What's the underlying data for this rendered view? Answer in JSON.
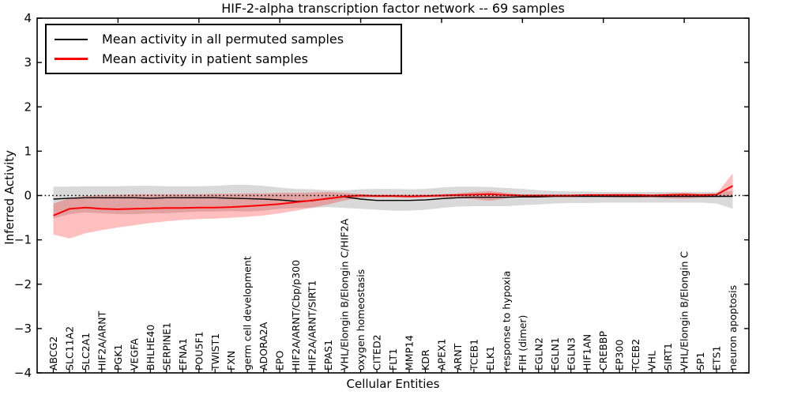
{
  "chart_data": {
    "type": "line",
    "title": "HIF-2-alpha transcription factor network -- 69 samples",
    "xlabel": "Cellular Entities",
    "ylabel": "Inferred Activity",
    "ylim": [
      -4,
      4
    ],
    "xlim": [
      0,
      44
    ],
    "grid": false,
    "legend_position": "upper left",
    "yticks": [
      4,
      3,
      2,
      1,
      0,
      -1,
      -2,
      -3,
      -4
    ],
    "ytick_labels": [
      "4",
      "3",
      "2",
      "1",
      "0",
      "−1",
      "−2",
      "−3",
      "−4"
    ],
    "top_axis_tick_positions": [
      5,
      10,
      15,
      20,
      25,
      30,
      35,
      40
    ],
    "zero_reference_line": {
      "y": 0,
      "style": "dotted",
      "color": "#000000"
    },
    "categories": [
      "ABCG2",
      "SLC11A2",
      "SLC2A1",
      "HIF2A/ARNT",
      "PGK1",
      "VEGFA",
      "BHLHE40",
      "SERPINE1",
      "EFNA1",
      "POU5F1",
      "TWIST1",
      "FXN",
      "germ cell development",
      "ADORA2A",
      "EPO",
      "HIF2A/ARNT/Cbp/p300",
      "HIF2A/ARNT/SIRT1",
      "EPAS1",
      "VHL/Elongin B/Elongin C/HIF2A",
      "oxygen homeostasis",
      "CITED2",
      "FLT1",
      "MMP14",
      "KDR",
      "APEX1",
      "ARNT",
      "TCEB1",
      "ELK1",
      "response to hypoxia",
      "FIH (dimer)",
      "EGLN2",
      "EGLN1",
      "EGLN3",
      "HIF1AN",
      "CREBBP",
      "EP300",
      "TCEB2",
      "VHL",
      "SIRT1",
      "VHL/Elongin B/Elongin C",
      "SP1",
      "ETS1",
      "neuron apoptosis"
    ],
    "series": [
      {
        "name": "Mean activity in all permuted samples",
        "color": "#000000",
        "line_width": 1.4,
        "values": [
          -0.08,
          -0.06,
          -0.05,
          -0.05,
          -0.05,
          -0.05,
          -0.06,
          -0.05,
          -0.05,
          -0.05,
          -0.05,
          -0.06,
          -0.07,
          -0.08,
          -0.1,
          -0.13,
          -0.12,
          -0.06,
          -0.03,
          -0.08,
          -0.11,
          -0.11,
          -0.11,
          -0.1,
          -0.07,
          -0.05,
          -0.04,
          -0.04,
          -0.04,
          -0.03,
          -0.03,
          -0.02,
          -0.02,
          -0.02,
          -0.02,
          -0.02,
          -0.02,
          -0.02,
          -0.02,
          -0.02,
          -0.02,
          -0.02,
          -0.02
        ],
        "band": {
          "color": "#808080",
          "opacity": 0.3,
          "upper": [
            0.2,
            0.2,
            0.21,
            0.21,
            0.21,
            0.22,
            0.22,
            0.21,
            0.21,
            0.21,
            0.22,
            0.24,
            0.24,
            0.22,
            0.18,
            0.15,
            0.14,
            0.12,
            0.12,
            0.14,
            0.15,
            0.15,
            0.14,
            0.15,
            0.18,
            0.2,
            0.2,
            0.19,
            0.17,
            0.15,
            0.12,
            0.1,
            0.09,
            0.09,
            0.08,
            0.08,
            0.08,
            0.08,
            0.08,
            0.08,
            0.08,
            0.08,
            0.1
          ],
          "lower": [
            -0.52,
            -0.42,
            -0.38,
            -0.4,
            -0.42,
            -0.42,
            -0.4,
            -0.4,
            -0.38,
            -0.36,
            -0.36,
            -0.35,
            -0.36,
            -0.34,
            -0.3,
            -0.28,
            -0.28,
            -0.26,
            -0.28,
            -0.3,
            -0.32,
            -0.34,
            -0.34,
            -0.32,
            -0.28,
            -0.25,
            -0.24,
            -0.24,
            -0.24,
            -0.22,
            -0.2,
            -0.18,
            -0.17,
            -0.17,
            -0.16,
            -0.16,
            -0.16,
            -0.16,
            -0.16,
            -0.16,
            -0.16,
            -0.18,
            -0.3
          ]
        }
      },
      {
        "name": "Mean activity in patient samples",
        "color": "#ff0000",
        "line_width": 2,
        "values": [
          -0.45,
          -0.3,
          -0.27,
          -0.3,
          -0.31,
          -0.3,
          -0.29,
          -0.28,
          -0.28,
          -0.27,
          -0.27,
          -0.26,
          -0.24,
          -0.22,
          -0.19,
          -0.15,
          -0.11,
          -0.07,
          -0.02,
          0.0,
          -0.01,
          -0.01,
          -0.02,
          -0.01,
          0.0,
          0.01,
          0.02,
          0.03,
          0.01,
          0.0,
          0.0,
          0.0,
          0.0,
          0.01,
          0.01,
          0.01,
          0.01,
          0.0,
          0.01,
          0.02,
          0.01,
          0.02,
          0.22
        ],
        "band": {
          "color": "#ff0000",
          "opacity": 0.25,
          "upper": [
            -0.18,
            -0.06,
            -0.01,
            0.01,
            0.02,
            0.03,
            0.03,
            0.03,
            0.03,
            0.03,
            0.04,
            0.04,
            0.05,
            0.05,
            0.06,
            0.06,
            0.07,
            0.08,
            0.06,
            0.03,
            0.02,
            0.02,
            0.02,
            0.02,
            0.03,
            0.05,
            0.08,
            0.1,
            0.06,
            0.02,
            0.02,
            0.02,
            0.02,
            0.02,
            0.03,
            0.04,
            0.04,
            0.03,
            0.05,
            0.06,
            0.04,
            0.04,
            0.5
          ],
          "lower": [
            -0.88,
            -0.97,
            -0.85,
            -0.78,
            -0.72,
            -0.67,
            -0.62,
            -0.58,
            -0.55,
            -0.53,
            -0.52,
            -0.5,
            -0.48,
            -0.45,
            -0.4,
            -0.34,
            -0.27,
            -0.2,
            -0.11,
            -0.05,
            -0.04,
            -0.04,
            -0.05,
            -0.04,
            -0.04,
            -0.05,
            -0.08,
            -0.12,
            -0.06,
            -0.03,
            -0.03,
            -0.03,
            -0.03,
            -0.03,
            -0.04,
            -0.05,
            -0.05,
            -0.04,
            -0.06,
            -0.07,
            -0.05,
            -0.04,
            -0.02
          ]
        }
      }
    ]
  }
}
